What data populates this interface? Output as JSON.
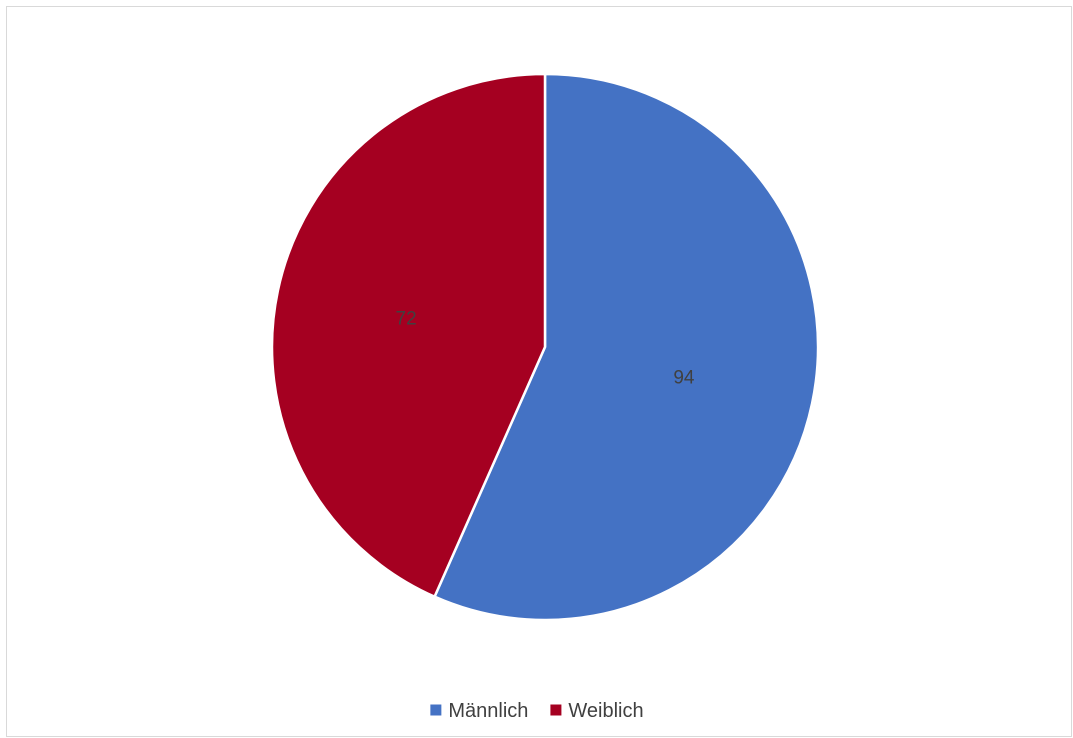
{
  "chart_data": {
    "type": "pie",
    "categories": [
      "Männlich",
      "Weiblich"
    ],
    "values": [
      94,
      72
    ],
    "colors": [
      "#4472C4",
      "#A50021"
    ],
    "legend": "bottom",
    "start_angle_deg": 0,
    "direction": "clockwise",
    "data_labels": [
      "94",
      "72"
    ]
  }
}
